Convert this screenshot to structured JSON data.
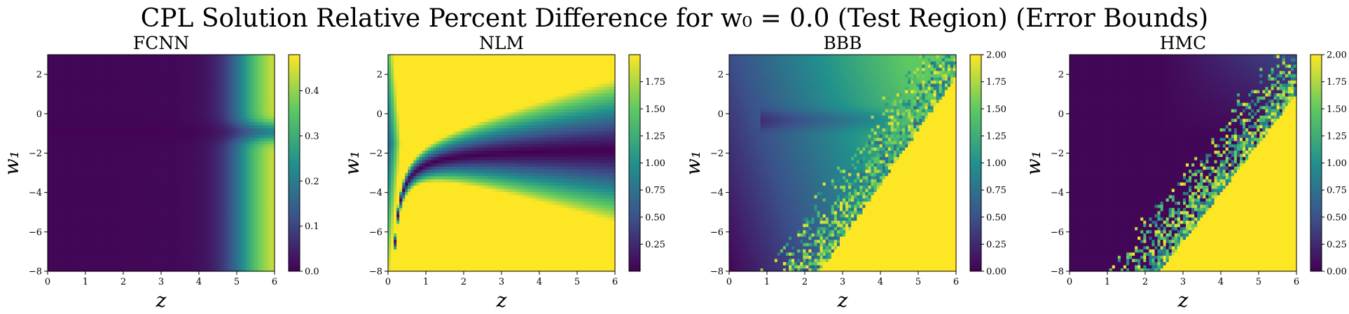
{
  "figure": {
    "title": "CPL Solution Relative Percent Difference for w₀ = 0.0 (Test Region) (Error Bounds)"
  },
  "colors": {
    "viridis": [
      "#440154",
      "#3b528b",
      "#21918c",
      "#5ec962",
      "#fde725"
    ]
  },
  "chart_data": [
    {
      "type": "heatmap",
      "title": "FCNN",
      "xlabel": "z",
      "ylabel": "w₁",
      "xlim": [
        0,
        6
      ],
      "ylim": [
        -8,
        3
      ],
      "x_ticks": [
        "0",
        "1",
        "2",
        "3",
        "4",
        "5",
        "6"
      ],
      "y_ticks": [
        "2",
        "0",
        "−2",
        "−4",
        "−6",
        "−8"
      ],
      "colorbar": {
        "min": 0.0,
        "max": 0.48,
        "ticks": [
          "0.0",
          "0.1",
          "0.2",
          "0.3",
          "0.4"
        ]
      },
      "pattern": "Near 0 over most of the domain; values rise toward the right edge (z > 4.5), highest (~0.48) at bottom-right and top-right, with a low ridge near w₁ ≈ -1"
    },
    {
      "type": "heatmap",
      "title": "NLM",
      "xlabel": "z",
      "ylabel": "w₁",
      "xlim": [
        0,
        6
      ],
      "ylim": [
        -8,
        3
      ],
      "x_ticks": [
        "0",
        "1",
        "2",
        "3",
        "4",
        "5",
        "6"
      ],
      "y_ticks": [
        "2",
        "0",
        "−2",
        "−4",
        "−6",
        "−8"
      ],
      "colorbar": {
        "min": 0.0,
        "max": 2.0,
        "ticks": [
          "0.25",
          "0.50",
          "0.75",
          "1.00",
          "1.25",
          "1.50",
          "1.75"
        ]
      },
      "pattern": "Saturated (~2.0) across most of the domain; a dark curved valley runs from (z≈0.4, w₁=-8) bending to w₁≈-1.8 at large z, with lower values near z≈0 and w₁≈-1.5"
    },
    {
      "type": "heatmap",
      "title": "BBB",
      "xlabel": "z",
      "ylabel": "w₁",
      "xlim": [
        0,
        6
      ],
      "ylim": [
        -8,
        3
      ],
      "x_ticks": [
        "0",
        "1",
        "2",
        "3",
        "4",
        "5",
        "6"
      ],
      "y_ticks": [
        "2",
        "0",
        "−2",
        "−4",
        "−6",
        "−8"
      ],
      "colorbar": {
        "min": 0.0,
        "max": 2.0,
        "ticks": [
          "0.00",
          "0.25",
          "0.50",
          "0.75",
          "1.00",
          "1.25",
          "1.50",
          "1.75",
          "2.00"
        ]
      },
      "pattern": "Low values at left rising smoothly to the right; a noisy transition boundary from (z≈1.5, w₁=-8) to (z≈5.5, w₁=3) beyond which values saturate at 2.0"
    },
    {
      "type": "heatmap",
      "title": "HMC",
      "xlabel": "z",
      "ylabel": "w₁",
      "xlim": [
        0,
        6
      ],
      "ylim": [
        -8,
        3
      ],
      "x_ticks": [
        "0",
        "1",
        "2",
        "3",
        "4",
        "5",
        "6"
      ],
      "y_ticks": [
        "2",
        "0",
        "−2",
        "−4",
        "−6",
        "−8"
      ],
      "colorbar": {
        "min": 0.0,
        "max": 2.0,
        "ticks": [
          "0.00",
          "0.25",
          "0.50",
          "0.75",
          "1.00",
          "1.25",
          "1.50",
          "1.75",
          "2.00"
        ]
      },
      "pattern": "Near 0 in the upper-left region; a noisy boundary from (z≈1.5, w₁=-8) to (z≈5.5, w₁=2) with saturated values (2.0) in the lower-right region"
    }
  ]
}
